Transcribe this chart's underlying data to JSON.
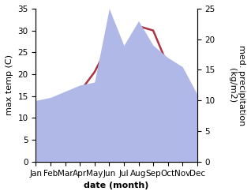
{
  "months": [
    "Jan",
    "Feb",
    "Mar",
    "Apr",
    "May",
    "Jun",
    "Jul",
    "Aug",
    "Sep",
    "Oct",
    "Nov",
    "Dec"
  ],
  "temperature": [
    8.5,
    9.5,
    13.5,
    16.0,
    20.5,
    27.0,
    25.0,
    31.0,
    30.0,
    22.0,
    13.5,
    9.0
  ],
  "precipitation": [
    10.0,
    10.5,
    11.5,
    12.5,
    13.0,
    25.0,
    19.0,
    23.0,
    19.0,
    17.0,
    15.5,
    11.0
  ],
  "temp_color": "#aa3344",
  "precip_fill_color": "#b0b8e8",
  "ylabel_left": "max temp (C)",
  "ylabel_right": "med. precipitation\n(kg/m2)",
  "xlabel": "date (month)",
  "ylim_left": [
    0,
    35
  ],
  "ylim_right": [
    0,
    25
  ],
  "yticks_left": [
    0,
    5,
    10,
    15,
    20,
    25,
    30,
    35
  ],
  "yticks_right": [
    0,
    5,
    10,
    15,
    20,
    25
  ],
  "label_fontsize": 8,
  "tick_fontsize": 7.5
}
